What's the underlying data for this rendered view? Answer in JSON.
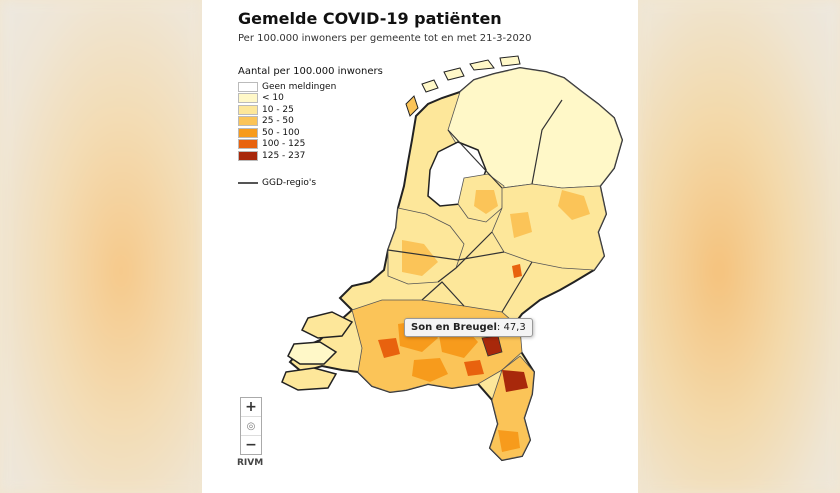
{
  "title": "Gemelde COVID-19 patiënten",
  "subtitle": "Per 100.000 inwoners per gemeente tot en met 21-3-2020",
  "legend": {
    "title": "Aantal per 100.000 inwoners",
    "classes": [
      {
        "label": "Geen meldingen",
        "color": "#ffffff"
      },
      {
        "label": "< 10",
        "color": "#fff8c8"
      },
      {
        "label": "10 - 25",
        "color": "#fde79a"
      },
      {
        "label": "25 - 50",
        "color": "#fbc458"
      },
      {
        "label": "50 - 100",
        "color": "#f79b1c"
      },
      {
        "label": "100 - 125",
        "color": "#e8620e"
      },
      {
        "label": "125 - 237",
        "color": "#a8280b"
      }
    ],
    "line_label": "GGD-regio's"
  },
  "tooltip": {
    "name": "Son en Breugel",
    "value": "47,3"
  },
  "zoom": {
    "in": "+",
    "reset": "◎",
    "out": "−"
  },
  "credit": "RIVM"
}
